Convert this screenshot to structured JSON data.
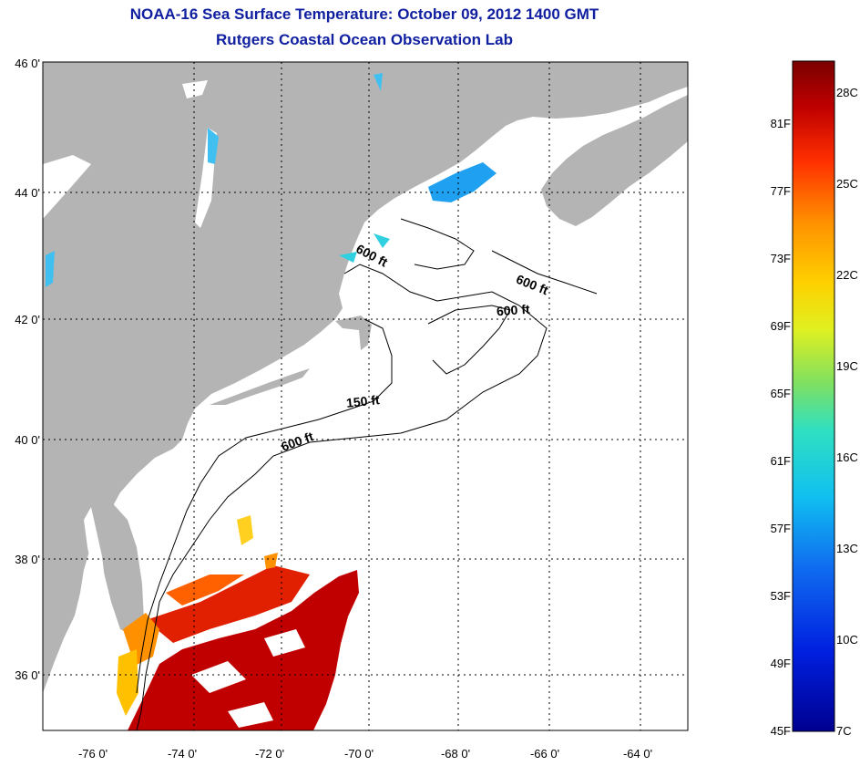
{
  "title": "NOAA-16 Sea Surface Temperature:  October 09, 2012 1400 GMT",
  "subtitle": "Rutgers Coastal Ocean Observation Lab",
  "map": {
    "lat_ticks": [
      "46 0'",
      "44 0'",
      "42 0'",
      "40 0'",
      "38 0'",
      "36 0'"
    ],
    "lon_ticks": [
      "-76 0'",
      "-74 0'",
      "-72 0'",
      "-70 0'",
      "-68 0'",
      "-66 0'",
      "-64 0'"
    ],
    "contours": [
      "600 ft",
      "600 ft",
      "600 ft",
      "150 ft",
      "600 ft"
    ],
    "land_color": "#b4b4b4",
    "ocean_color": "#ffffff"
  },
  "colorbar": {
    "fahrenheit": [
      "81F",
      "77F",
      "73F",
      "69F",
      "65F",
      "61F",
      "57F",
      "53F",
      "49F",
      "45F"
    ],
    "celsius": [
      "28C",
      "25C",
      "22C",
      "19C",
      "16C",
      "13C",
      "10C",
      "7C"
    ],
    "colors": [
      "#7a0000",
      "#c00000",
      "#ff3000",
      "#ff9000",
      "#ffd000",
      "#e0f020",
      "#80e060",
      "#30e0c0",
      "#10c0f0",
      "#1070f0",
      "#0020e0",
      "#000090"
    ]
  }
}
